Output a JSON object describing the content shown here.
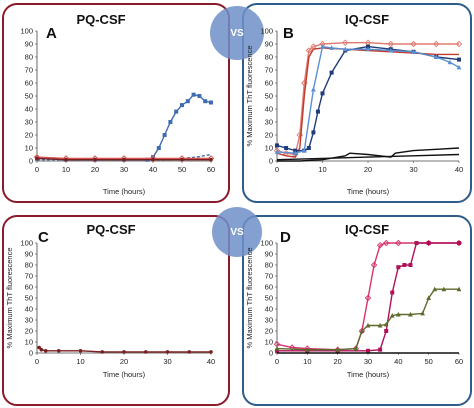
{
  "colors": {
    "pq_frame": "#8b1a2b",
    "iq_frame": "#2f5d8a",
    "vs_fill": "#6f8fc9"
  },
  "vs_label": "VS",
  "chart_data": [
    {
      "id": "A",
      "type": "line",
      "letter": "A",
      "title": "PQ-CSF",
      "xlabel": "Time (hours)",
      "ylabel": "",
      "xlim": [
        0,
        60
      ],
      "ylim": [
        0,
        100
      ],
      "xticks": [
        0,
        10,
        20,
        30,
        40,
        50,
        60
      ],
      "yticks": [
        0,
        10,
        20,
        30,
        40,
        50,
        60,
        70,
        80,
        90,
        100
      ],
      "series": [
        {
          "color": "#3f6bb0",
          "marker": "square",
          "x": [
            0,
            10,
            20,
            30,
            38,
            40,
            42,
            44,
            46,
            48,
            50,
            52,
            54,
            56,
            58,
            60
          ],
          "y": [
            2,
            1,
            1,
            1,
            1,
            3,
            10,
            20,
            30,
            38,
            43,
            46,
            51,
            50,
            46,
            45
          ]
        },
        {
          "color": "#3f6bb0",
          "marker": "none",
          "dash": true,
          "x": [
            0,
            10,
            20,
            30,
            40,
            45,
            50,
            55,
            60
          ],
          "y": [
            1,
            1,
            1,
            1,
            1,
            1,
            2,
            3,
            5
          ]
        },
        {
          "color": "#d9534f",
          "marker": "diamond",
          "x": [
            0,
            10,
            20,
            30,
            40,
            50,
            60
          ],
          "y": [
            3,
            2,
            2,
            2,
            2,
            2,
            2
          ]
        },
        {
          "color": "#7a1f1f",
          "marker": "circle",
          "x": [
            0,
            10,
            20,
            30,
            40,
            50,
            60
          ],
          "y": [
            2,
            1,
            1,
            1,
            1,
            1,
            1
          ]
        }
      ]
    },
    {
      "id": "B",
      "type": "line",
      "letter": "B",
      "title": "IQ-CSF",
      "xlabel": "Time (hours)",
      "ylabel": "% Maximum ThT fluorescence",
      "xlim": [
        0,
        40
      ],
      "ylim": [
        0,
        100
      ],
      "xticks": [
        0,
        10,
        20,
        30,
        40
      ],
      "yticks": [
        0,
        10,
        20,
        30,
        40,
        50,
        60,
        70,
        80,
        90,
        100
      ],
      "series": [
        {
          "color": "#e07b6f",
          "marker": "diamond",
          "x": [
            0,
            2,
            4,
            5,
            6,
            7,
            8,
            10,
            15,
            20,
            25,
            30,
            35,
            40
          ],
          "y": [
            8,
            6,
            5,
            20,
            60,
            85,
            88,
            90,
            91,
            91,
            90,
            90,
            90,
            90
          ]
        },
        {
          "color": "#c0392b",
          "marker": "none",
          "x": [
            0,
            2,
            4,
            5,
            6,
            7,
            8,
            10,
            15,
            20,
            25,
            30,
            35,
            40
          ],
          "y": [
            6,
            4,
            3,
            10,
            50,
            80,
            86,
            87,
            86,
            85,
            84,
            83,
            82,
            82
          ]
        },
        {
          "color": "#1f3d7a",
          "marker": "square",
          "x": [
            0,
            2,
            4,
            6,
            7,
            8,
            9,
            10,
            12,
            15,
            20,
            25,
            30,
            35,
            40
          ],
          "y": [
            12,
            10,
            8,
            8,
            10,
            22,
            38,
            52,
            68,
            85,
            88,
            86,
            84,
            80,
            78
          ]
        },
        {
          "color": "#5b8fd1",
          "marker": "triangle",
          "x": [
            0,
            4,
            6,
            8,
            10,
            12,
            15,
            20,
            25,
            30,
            35,
            38,
            40
          ],
          "y": [
            7,
            6,
            8,
            55,
            88,
            87,
            86,
            86,
            85,
            84,
            80,
            76,
            72
          ]
        },
        {
          "color": "#111111",
          "marker": "none",
          "x": [
            0,
            5,
            10,
            15,
            16,
            20,
            25,
            26,
            30,
            35,
            40
          ],
          "y": [
            0,
            0,
            1,
            4,
            6,
            5,
            3,
            6,
            8,
            9,
            10
          ]
        },
        {
          "color": "#111111",
          "marker": "none",
          "x": [
            0,
            10,
            20,
            30,
            40
          ],
          "y": [
            1,
            2,
            3,
            4,
            5
          ]
        }
      ]
    },
    {
      "id": "C",
      "type": "line",
      "letter": "C",
      "title": "PQ-CSF",
      "xlabel": "Time (hours)",
      "ylabel": "% Maximum ThT fluorescence",
      "xlim": [
        0,
        40
      ],
      "ylim": [
        0,
        100
      ],
      "xticks": [
        0,
        10,
        20,
        30,
        40
      ],
      "yticks": [
        0,
        10,
        20,
        30,
        40,
        50,
        60,
        70,
        80,
        90,
        100
      ],
      "series": [
        {
          "color": "#7a1f1f",
          "marker": "circle",
          "x": [
            0.5,
            1,
            2,
            5,
            10,
            15,
            20,
            25,
            30,
            35,
            40
          ],
          "y": [
            5,
            3,
            2,
            2,
            2,
            1,
            1,
            1,
            1,
            1,
            1
          ]
        }
      ]
    },
    {
      "id": "D",
      "type": "line",
      "letter": "D",
      "title": "IQ-CSF",
      "xlabel": "Time (hours)",
      "ylabel": "% Maximum ThT fluorescence",
      "xlim": [
        0,
        60
      ],
      "ylim": [
        0,
        100
      ],
      "xticks": [
        0,
        10,
        20,
        30,
        40,
        50,
        60
      ],
      "yticks": [
        0,
        10,
        20,
        30,
        40,
        50,
        60,
        70,
        80,
        90,
        100
      ],
      "series": [
        {
          "color": "#d6336c",
          "marker": "diamond",
          "x": [
            0,
            5,
            10,
            20,
            26,
            28,
            30,
            32,
            34,
            36,
            40,
            50,
            60
          ],
          "y": [
            8,
            5,
            4,
            3,
            4,
            20,
            50,
            80,
            98,
            100,
            100,
            100,
            100
          ]
        },
        {
          "color": "#b0105a",
          "marker": "square",
          "x": [
            0,
            10,
            20,
            30,
            34,
            36,
            38,
            40,
            42,
            44,
            46,
            50,
            60
          ],
          "y": [
            2,
            2,
            2,
            2,
            3,
            20,
            55,
            78,
            80,
            80,
            100,
            100,
            100
          ]
        },
        {
          "color": "#5d6b2d",
          "marker": "triangle",
          "x": [
            0,
            10,
            20,
            26,
            28,
            30,
            34,
            36,
            38,
            40,
            44,
            48,
            50,
            52,
            55,
            60
          ],
          "y": [
            4,
            3,
            3,
            4,
            20,
            25,
            25,
            26,
            34,
            35,
            35,
            36,
            50,
            58,
            58,
            58
          ]
        },
        {
          "color": "#111111",
          "marker": "none",
          "x": [
            0,
            10,
            20,
            30,
            40,
            50,
            60
          ],
          "y": [
            0,
            0,
            0,
            0,
            0,
            0,
            0
          ]
        }
      ]
    }
  ]
}
